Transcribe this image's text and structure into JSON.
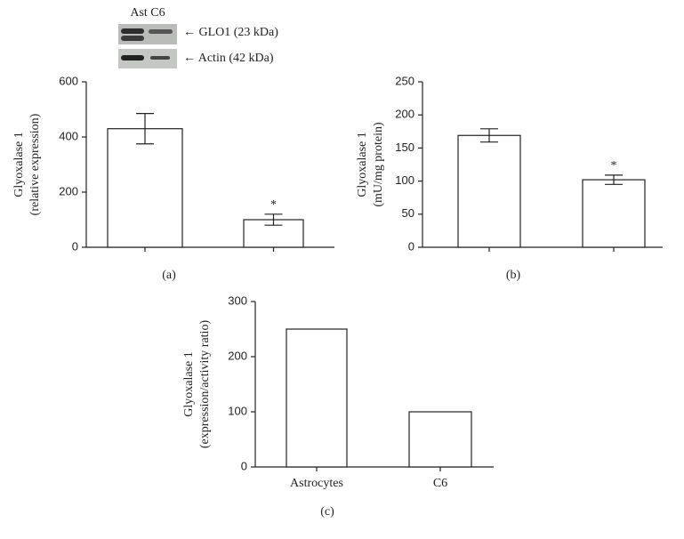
{
  "blot": {
    "lanes": "Ast C6",
    "bands": [
      "← GLO1 (23 kDa)",
      "← Actin (42 kDa)"
    ]
  },
  "chart_data": [
    {
      "type": "bar",
      "panel": "(a)",
      "ylabel": [
        "Glyoxalase 1",
        "(relative expression)"
      ],
      "categories": [
        null,
        null
      ],
      "values": [
        430,
        100
      ],
      "errors": [
        55,
        20
      ],
      "significance": [
        null,
        "*"
      ],
      "ylim": [
        0,
        600
      ],
      "yticks": [
        0,
        200,
        400,
        600
      ],
      "color": "#ffffff"
    },
    {
      "type": "bar",
      "panel": "(b)",
      "ylabel": [
        "Glyoxalase 1",
        "(mU/mg protein)"
      ],
      "categories": [
        null,
        null
      ],
      "values": [
        169,
        102
      ],
      "errors": [
        10,
        7
      ],
      "significance": [
        null,
        "*"
      ],
      "ylim": [
        0,
        250
      ],
      "yticks": [
        0,
        50,
        100,
        150,
        200,
        250
      ],
      "color": "#ffffff"
    },
    {
      "type": "bar",
      "panel": "(c)",
      "ylabel": [
        "Glyoxalase 1",
        "(expression/activity ratio)"
      ],
      "categories": [
        "Astrocytes",
        "C6"
      ],
      "values": [
        250,
        100
      ],
      "ylim": [
        0,
        300
      ],
      "yticks": [
        0,
        100,
        200,
        300
      ],
      "color": "#ffffff"
    }
  ]
}
